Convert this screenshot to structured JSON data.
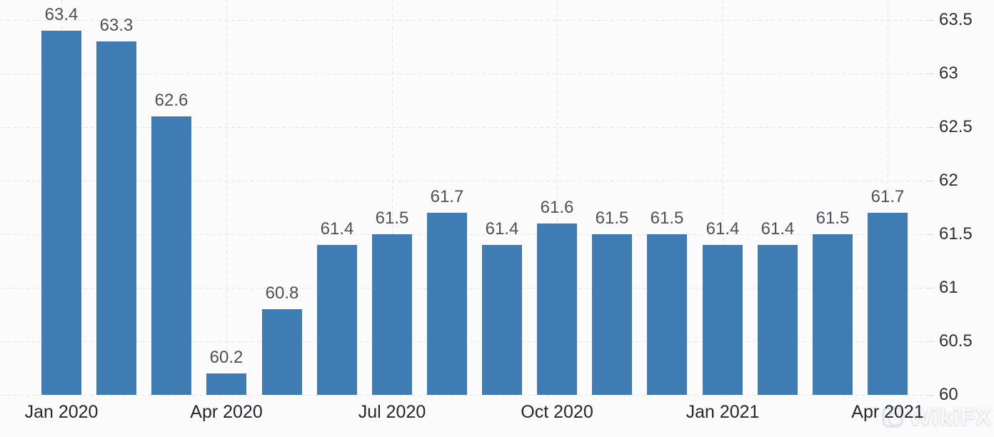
{
  "chart_data": {
    "type": "bar",
    "values": [
      63.4,
      63.3,
      62.6,
      60.2,
      60.8,
      61.4,
      61.5,
      61.7,
      61.4,
      61.6,
      61.5,
      61.5,
      61.4,
      61.4,
      61.5,
      61.7
    ],
    "bar_labels": [
      "63.4",
      "63.3",
      "62.6",
      "60.2",
      "60.8",
      "61.4",
      "61.5",
      "61.7",
      "61.4",
      "61.6",
      "61.5",
      "61.5",
      "61.4",
      "61.4",
      "61.5",
      "61.7"
    ],
    "x_ticks": [
      {
        "index": 0,
        "label": "Jan 2020"
      },
      {
        "index": 3,
        "label": "Apr 2020"
      },
      {
        "index": 6,
        "label": "Jul 2020"
      },
      {
        "index": 9,
        "label": "Oct 2020"
      },
      {
        "index": 12,
        "label": "Jan 2021"
      },
      {
        "index": 15,
        "label": "Apr 2021"
      }
    ],
    "y_ticks": [
      63.5,
      63,
      62.5,
      62,
      61.5,
      61,
      60.5,
      60
    ],
    "ylim": [
      60,
      63.55
    ],
    "yaxis_side": "right",
    "grid": true,
    "title": "",
    "xlabel": "",
    "ylabel": "",
    "legend": "none",
    "bar_color": "#3f7cb4",
    "label_color": "#4f4f56",
    "axis_text_color": "#2e2e36",
    "background_color": "#fbfbfb"
  },
  "watermark": {
    "text": "WikiFX"
  }
}
